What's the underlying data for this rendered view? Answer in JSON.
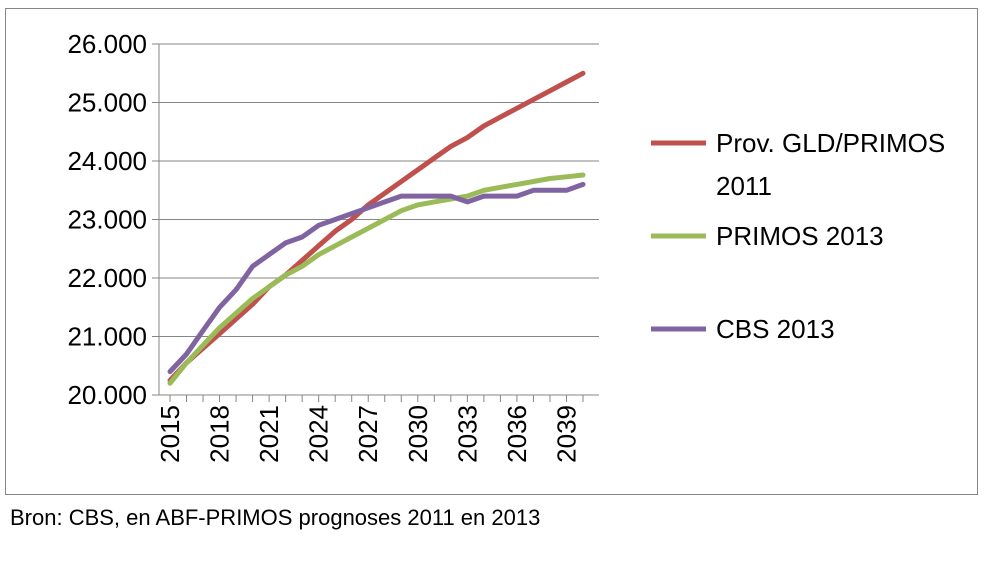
{
  "chart_data": {
    "type": "line",
    "x": [
      2015,
      2016,
      2017,
      2018,
      2019,
      2020,
      2021,
      2022,
      2023,
      2024,
      2025,
      2026,
      2027,
      2028,
      2029,
      2030,
      2031,
      2032,
      2033,
      2034,
      2035,
      2036,
      2037,
      2038,
      2039,
      2040
    ],
    "x_tick_labels": [
      "2015",
      "2018",
      "2021",
      "2024",
      "2027",
      "2030",
      "2033",
      "2036",
      "2039"
    ],
    "y_tick_labels": [
      "20.000",
      "21.000",
      "22.000",
      "23.000",
      "24.000",
      "25.000",
      "26.000"
    ],
    "ylim": [
      20000,
      26000
    ],
    "y_ticks": [
      20000,
      21000,
      22000,
      23000,
      24000,
      25000,
      26000
    ],
    "grid": "horizontal",
    "legend_position": "right",
    "series": [
      {
        "name": "Prov. GLD/PRIMOS",
        "name_line2": "2011",
        "color": "#C0504D",
        "values": [
          20250,
          20550,
          20800,
          21050,
          21300,
          21550,
          21850,
          22050,
          22300,
          22550,
          22800,
          23000,
          23250,
          23450,
          23650,
          23850,
          24050,
          24250,
          24400,
          24600,
          24750,
          24900,
          25050,
          25200,
          25350,
          25500
        ]
      },
      {
        "name": "PRIMOS 2013",
        "color": "#9BBB59",
        "values": [
          20200,
          20550,
          20850,
          21150,
          21400,
          21650,
          21850,
          22050,
          22200,
          22400,
          22550,
          22700,
          22850,
          23000,
          23150,
          23250,
          23300,
          23350,
          23400,
          23500,
          23550,
          23600,
          23650,
          23700,
          23730,
          23760
        ]
      },
      {
        "name": "CBS 2013",
        "color": "#8064A2",
        "values": [
          20400,
          20700,
          21100,
          21500,
          21800,
          22200,
          22400,
          22600,
          22700,
          22900,
          23000,
          23100,
          23200,
          23300,
          23400,
          23400,
          23400,
          23400,
          23300,
          23400,
          23400,
          23400,
          23500,
          23500,
          23500,
          23600
        ]
      }
    ]
  },
  "source_note": "Bron: CBS, en ABF-PRIMOS prognoses 2011 en 2013"
}
